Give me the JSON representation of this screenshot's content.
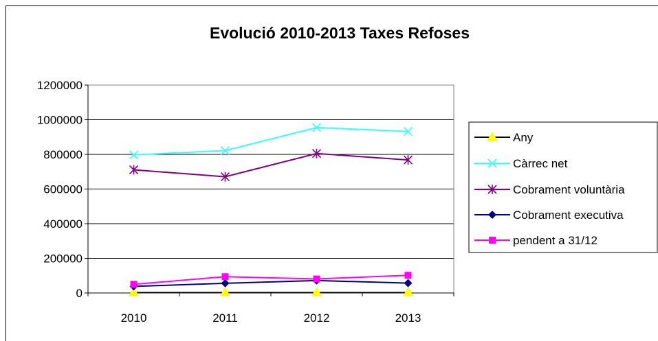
{
  "chart_data": {
    "type": "line",
    "title": "Evolució 2010-2013 Taxes Refoses",
    "xlabel": "",
    "ylabel": "",
    "categories": [
      "2010",
      "2011",
      "2012",
      "2013"
    ],
    "ylim": [
      0,
      1200000
    ],
    "yticks": [
      "0",
      "200000",
      "400000",
      "600000",
      "800000",
      "1000000",
      "1200000"
    ],
    "grid": true,
    "legend_position": "right",
    "series": [
      {
        "name": "Any",
        "values": [
          2010,
          2011,
          2012,
          2013
        ],
        "color": "#ffff00",
        "line_color": "#000000",
        "marker": "triangle"
      },
      {
        "name": "Càrrec net",
        "values": [
          797000,
          822000,
          955000,
          932000
        ],
        "color": "#33ffff",
        "line_color": "#33ffff",
        "marker": "x"
      },
      {
        "name": "Cobrament voluntària",
        "values": [
          711000,
          671000,
          805000,
          768000
        ],
        "color": "#800080",
        "line_color": "#800080",
        "marker": "star"
      },
      {
        "name": "Cobrament executiva",
        "values": [
          38000,
          56000,
          72000,
          57000
        ],
        "color": "#000080",
        "line_color": "#000080",
        "marker": "diamond"
      },
      {
        "name": "pendent a 31/12",
        "values": [
          50000,
          94000,
          81000,
          102000
        ],
        "color": "#ff00ff",
        "line_color": "#ff00ff",
        "marker": "square"
      }
    ]
  }
}
